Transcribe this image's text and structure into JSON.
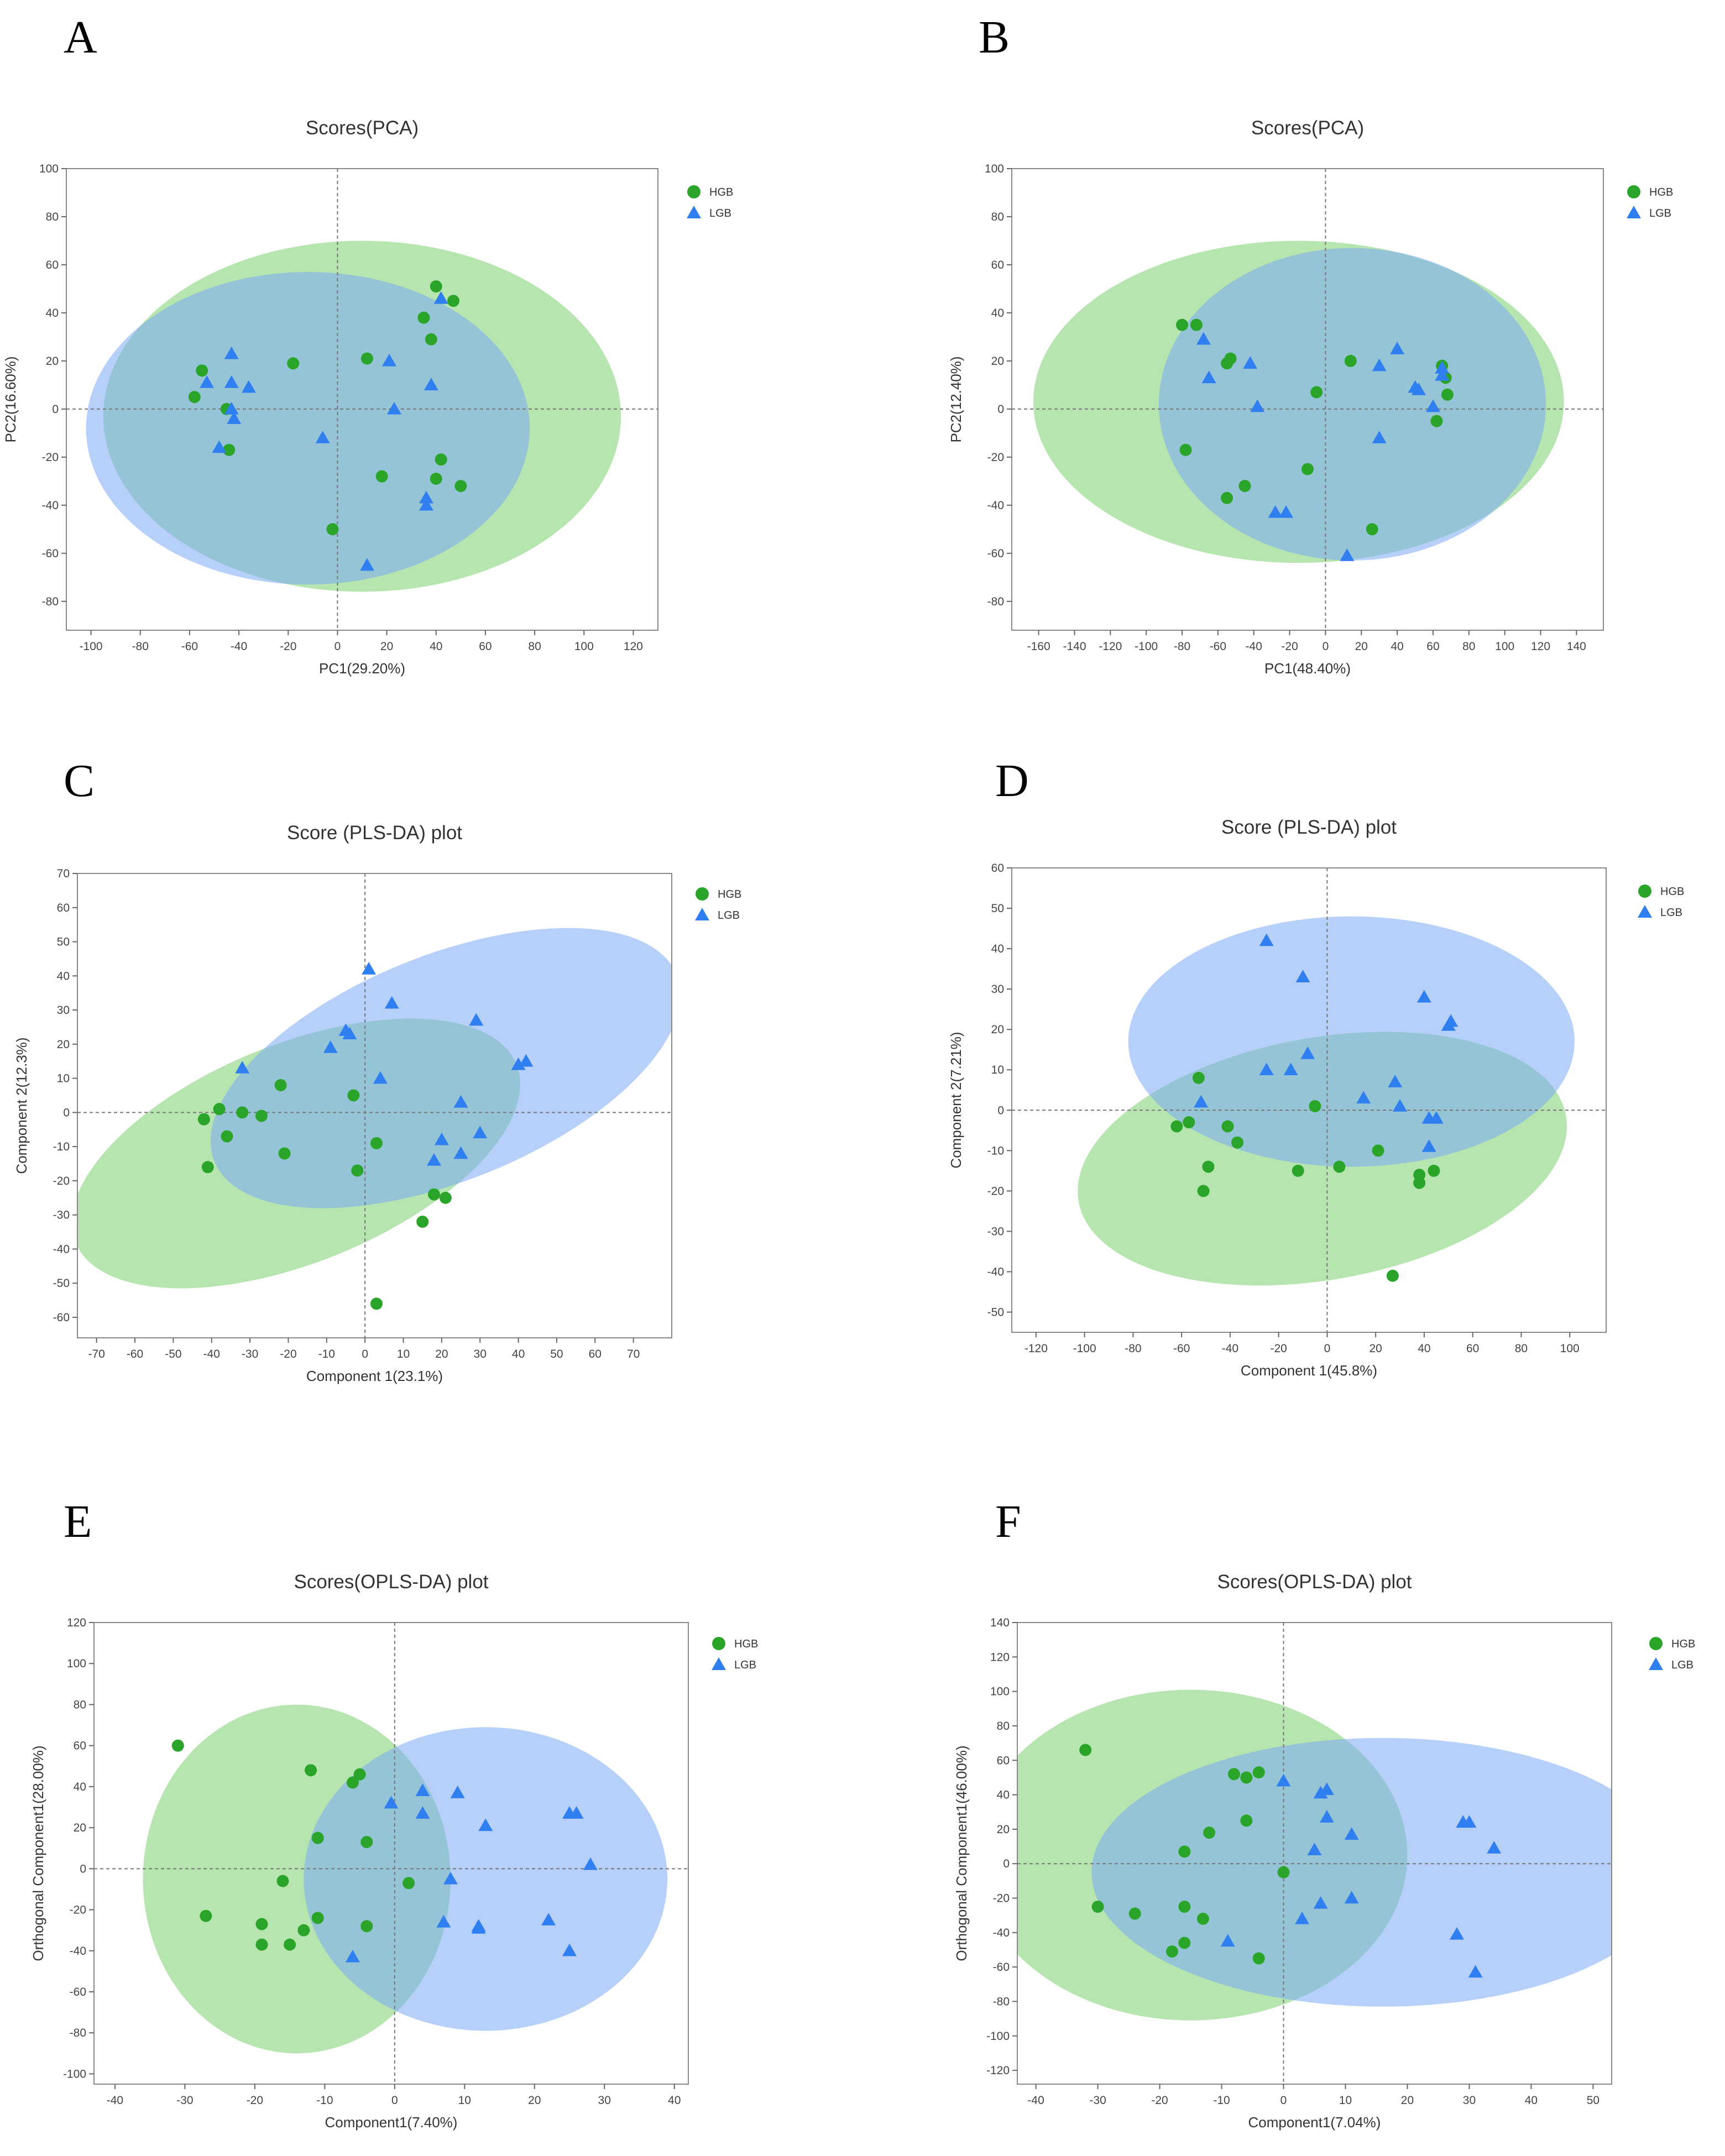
{
  "colors": {
    "hgb": "#2aa52a",
    "lgb": "#2f7ff0",
    "hgb_fill": "#7ccf6e",
    "lgb_fill": "#7aa9f5"
  },
  "chart_data": [
    {
      "panel": "A",
      "type": "scatter",
      "title": "Scores(PCA)",
      "xlabel": "PC1(29.20%)",
      "ylabel": "PC2(16.60%)",
      "xlim": [
        -110,
        130
      ],
      "ylim": [
        -92,
        100
      ],
      "xticks": [
        -100,
        -80,
        -60,
        -40,
        -20,
        0,
        20,
        40,
        60,
        80,
        100,
        120
      ],
      "yticks": [
        100,
        80,
        60,
        40,
        20,
        0,
        -20,
        -40,
        -60,
        -80
      ],
      "legend": [
        "HGB",
        "LGB"
      ],
      "ellipses": [
        {
          "group": "HGB",
          "cx": 10,
          "cy": -3,
          "rx": 105,
          "ry": 73,
          "angle": 0
        },
        {
          "group": "LGB",
          "cx": -12,
          "cy": -8,
          "rx": 90,
          "ry": 65,
          "angle": 0
        }
      ],
      "series": [
        {
          "name": "HGB",
          "marker": "circle",
          "points": [
            [
              -58,
              5
            ],
            [
              -55,
              16
            ],
            [
              -45,
              0
            ],
            [
              -44,
              -17
            ],
            [
              -18,
              19
            ],
            [
              12,
              21
            ],
            [
              18,
              -28
            ],
            [
              35,
              38
            ],
            [
              38,
              29
            ],
            [
              40,
              51
            ],
            [
              47,
              45
            ],
            [
              42,
              -21
            ],
            [
              40,
              -29
            ],
            [
              50,
              -32
            ],
            [
              -2,
              -50
            ]
          ]
        },
        {
          "name": "LGB",
          "marker": "triangle",
          "points": [
            [
              -53,
              11
            ],
            [
              -43,
              23
            ],
            [
              -43,
              11
            ],
            [
              -43,
              0
            ],
            [
              -42,
              -4
            ],
            [
              -36,
              9
            ],
            [
              -48,
              -16
            ],
            [
              -6,
              -12
            ],
            [
              21,
              20
            ],
            [
              23,
              0
            ],
            [
              38,
              10
            ],
            [
              42,
              46
            ],
            [
              36,
              -37
            ],
            [
              36,
              -40
            ],
            [
              12,
              -65
            ]
          ]
        }
      ]
    },
    {
      "panel": "B",
      "type": "scatter",
      "title": "Scores(PCA)",
      "xlabel": "PC1(48.40%)",
      "ylabel": "PC2(12.40%)",
      "xlim": [
        -175,
        155
      ],
      "ylim": [
        -92,
        100
      ],
      "xticks": [
        -160,
        -140,
        -120,
        -100,
        -80,
        -60,
        -40,
        -20,
        0,
        20,
        40,
        60,
        80,
        100,
        120,
        140
      ],
      "yticks": [
        100,
        80,
        60,
        40,
        20,
        0,
        -20,
        -40,
        -60,
        -80
      ],
      "legend": [
        "HGB",
        "LGB"
      ],
      "ellipses": [
        {
          "group": "HGB",
          "cx": -15,
          "cy": 3,
          "rx": 148,
          "ry": 67,
          "angle": 0
        },
        {
          "group": "LGB",
          "cx": 15,
          "cy": 2,
          "rx": 108,
          "ry": 65,
          "angle": 0
        }
      ],
      "series": [
        {
          "name": "HGB",
          "marker": "circle",
          "points": [
            [
              -80,
              35
            ],
            [
              -72,
              35
            ],
            [
              -55,
              19
            ],
            [
              -53,
              21
            ],
            [
              -5,
              7
            ],
            [
              14,
              20
            ],
            [
              -78,
              -17
            ],
            [
              -45,
              -32
            ],
            [
              -55,
              -37
            ],
            [
              -10,
              -25
            ],
            [
              26,
              -50
            ],
            [
              65,
              18
            ],
            [
              67,
              13
            ],
            [
              68,
              6
            ],
            [
              62,
              -5
            ]
          ]
        },
        {
          "name": "LGB",
          "marker": "triangle",
          "points": [
            [
              -68,
              29
            ],
            [
              -65,
              13
            ],
            [
              -42,
              19
            ],
            [
              -38,
              1
            ],
            [
              -28,
              -43
            ],
            [
              -22,
              -43
            ],
            [
              12,
              -61
            ],
            [
              30,
              18
            ],
            [
              40,
              25
            ],
            [
              50,
              9
            ],
            [
              30,
              -12
            ],
            [
              60,
              1
            ],
            [
              65,
              14
            ],
            [
              65,
              17
            ],
            [
              52,
              8
            ]
          ]
        }
      ]
    },
    {
      "panel": "C",
      "type": "scatter",
      "title": "Score (PLS-DA) plot",
      "xlabel": "Component 1(23.1%)",
      "ylabel": "Component 2(12.3%)",
      "xlim": [
        -75,
        80
      ],
      "ylim": [
        -66,
        70
      ],
      "xticks": [
        -70,
        -60,
        -50,
        -40,
        -30,
        -20,
        -10,
        0,
        10,
        20,
        30,
        40,
        50,
        60,
        70
      ],
      "yticks": [
        70,
        60,
        50,
        40,
        30,
        20,
        10,
        0,
        -10,
        -20,
        -30,
        -40,
        -50,
        -60
      ],
      "legend": [
        "HGB",
        "LGB"
      ],
      "ellipses": [
        {
          "group": "HGB",
          "cx": -18,
          "cy": -12,
          "rx": 62,
          "ry": 32,
          "angle": -22
        },
        {
          "group": "LGB",
          "cx": 21,
          "cy": 13,
          "rx": 65,
          "ry": 33,
          "angle": -22
        }
      ],
      "series": [
        {
          "name": "HGB",
          "marker": "circle",
          "points": [
            [
              -42,
              -2
            ],
            [
              -38,
              1
            ],
            [
              -36,
              -7
            ],
            [
              -32,
              0
            ],
            [
              -27,
              -1
            ],
            [
              -22,
              8
            ],
            [
              -21,
              -12
            ],
            [
              -41,
              -16
            ],
            [
              -3,
              5
            ],
            [
              3,
              -9
            ],
            [
              -2,
              -17
            ],
            [
              18,
              -24
            ],
            [
              21,
              -25
            ],
            [
              15,
              -32
            ],
            [
              3,
              -56
            ]
          ]
        },
        {
          "name": "LGB",
          "marker": "triangle",
          "points": [
            [
              -32,
              13
            ],
            [
              -9,
              19
            ],
            [
              -5,
              24
            ],
            [
              -4,
              23
            ],
            [
              1,
              42
            ],
            [
              4,
              10
            ],
            [
              7,
              32
            ],
            [
              18,
              -14
            ],
            [
              20,
              -8
            ],
            [
              25,
              3
            ],
            [
              25,
              -12
            ],
            [
              29,
              27
            ],
            [
              30,
              -6
            ],
            [
              40,
              14
            ],
            [
              42,
              15
            ]
          ]
        }
      ]
    },
    {
      "panel": "D",
      "type": "scatter",
      "title": "Score (PLS-DA) plot",
      "xlabel": "Component 1(45.8%)",
      "ylabel": "Component 2(7.21%)",
      "xlim": [
        -130,
        115
      ],
      "ylim": [
        -55,
        60
      ],
      "xticks": [
        -120,
        -100,
        -80,
        -60,
        -40,
        -20,
        0,
        20,
        40,
        60,
        80,
        100
      ],
      "yticks": [
        60,
        50,
        40,
        30,
        20,
        10,
        0,
        -10,
        -20,
        -30,
        -40,
        -50
      ],
      "legend": [
        "HGB",
        "LGB"
      ],
      "ellipses": [
        {
          "group": "HGB",
          "cx": -2,
          "cy": -12,
          "rx": 102,
          "ry": 30,
          "angle": -10
        },
        {
          "group": "LGB",
          "cx": 10,
          "cy": 17,
          "rx": 92,
          "ry": 31,
          "angle": 0
        }
      ],
      "series": [
        {
          "name": "HGB",
          "marker": "circle",
          "points": [
            [
              -62,
              -4
            ],
            [
              -57,
              -3
            ],
            [
              -53,
              8
            ],
            [
              -49,
              -14
            ],
            [
              -51,
              -20
            ],
            [
              -41,
              -4
            ],
            [
              -37,
              -8
            ],
            [
              -5,
              1
            ],
            [
              -12,
              -15
            ],
            [
              5,
              -14
            ],
            [
              21,
              -10
            ],
            [
              38,
              -16
            ],
            [
              38,
              -18
            ],
            [
              44,
              -15
            ],
            [
              27,
              -41
            ]
          ]
        },
        {
          "name": "LGB",
          "marker": "triangle",
          "points": [
            [
              -52,
              2
            ],
            [
              -25,
              42
            ],
            [
              -10,
              33
            ],
            [
              -8,
              14
            ],
            [
              -25,
              10
            ],
            [
              -15,
              10
            ],
            [
              15,
              3
            ],
            [
              28,
              7
            ],
            [
              30,
              1
            ],
            [
              40,
              28
            ],
            [
              42,
              -2
            ],
            [
              42,
              -9
            ],
            [
              45,
              -2
            ],
            [
              50,
              21
            ],
            [
              51,
              22
            ]
          ]
        }
      ]
    },
    {
      "panel": "E",
      "type": "scatter",
      "title": "Scores(OPLS-DA) plot",
      "xlabel": "Component1(7.40%)",
      "ylabel": "Orthogonal Component1(28.00%)",
      "xlim": [
        -43,
        42
      ],
      "ylim": [
        -105,
        120
      ],
      "xticks": [
        -40,
        -30,
        -20,
        -10,
        0,
        10,
        20,
        30,
        40
      ],
      "yticks": [
        120,
        100,
        80,
        60,
        40,
        20,
        0,
        -20,
        -40,
        -60,
        -80,
        -100
      ],
      "legend": [
        "HGB",
        "LGB"
      ],
      "ellipses": [
        {
          "group": "HGB",
          "cx": -14,
          "cy": -5,
          "rx": 22,
          "ry": 85,
          "angle": 0
        },
        {
          "group": "LGB",
          "cx": 13,
          "cy": -5,
          "rx": 26,
          "ry": 74,
          "angle": 0
        }
      ],
      "series": [
        {
          "name": "HGB",
          "marker": "circle",
          "points": [
            [
              -31,
              60
            ],
            [
              -12,
              48
            ],
            [
              -6,
              42
            ],
            [
              -5,
              46
            ],
            [
              -11,
              15
            ],
            [
              -4,
              13
            ],
            [
              -16,
              -6
            ],
            [
              -19,
              -27
            ],
            [
              -27,
              -23
            ],
            [
              -19,
              -37
            ],
            [
              -15,
              -37
            ],
            [
              -13,
              -30
            ],
            [
              -11,
              -24
            ],
            [
              -4,
              -28
            ],
            [
              2,
              -7
            ]
          ]
        },
        {
          "name": "LGB",
          "marker": "triangle",
          "points": [
            [
              -6,
              -43
            ],
            [
              -0.5,
              32
            ],
            [
              4,
              27
            ],
            [
              4,
              38
            ],
            [
              9,
              37
            ],
            [
              13,
              21
            ],
            [
              8,
              -5
            ],
            [
              7,
              -26
            ],
            [
              12,
              -28
            ],
            [
              12,
              -29
            ],
            [
              22,
              -25
            ],
            [
              25,
              27
            ],
            [
              26,
              27
            ],
            [
              28,
              2
            ],
            [
              25,
              -40
            ]
          ]
        }
      ]
    },
    {
      "panel": "F",
      "type": "scatter",
      "title": "Scores(OPLS-DA) plot",
      "xlabel": "Component1(7.04%)",
      "ylabel": "Orthogonal Component1(46.00%)",
      "xlim": [
        -43,
        53
      ],
      "ylim": [
        -128,
        140
      ],
      "xticks": [
        -40,
        -30,
        -20,
        -10,
        0,
        10,
        20,
        30,
        40,
        50
      ],
      "yticks": [
        140,
        120,
        100,
        80,
        60,
        40,
        20,
        0,
        -20,
        -40,
        -60,
        -80,
        -100,
        -120
      ],
      "legend": [
        "HGB",
        "LGB"
      ],
      "ellipses": [
        {
          "group": "HGB",
          "cx": -15,
          "cy": 5,
          "rx": 35,
          "ry": 96,
          "angle": 0
        },
        {
          "group": "LGB",
          "cx": 16,
          "cy": -5,
          "rx": 47,
          "ry": 78,
          "angle": 0
        }
      ],
      "series": [
        {
          "name": "HGB",
          "marker": "circle",
          "points": [
            [
              -32,
              66
            ],
            [
              -30,
              -25
            ],
            [
              -24,
              -29
            ],
            [
              -18,
              -51
            ],
            [
              -16,
              -46
            ],
            [
              -16,
              -25
            ],
            [
              -16,
              7
            ],
            [
              -13,
              -32
            ],
            [
              -12,
              18
            ],
            [
              -8,
              52
            ],
            [
              -6,
              50
            ],
            [
              -4,
              53
            ],
            [
              -6,
              25
            ],
            [
              0,
              -5
            ],
            [
              -4,
              -55
            ]
          ]
        },
        {
          "name": "LGB",
          "marker": "triangle",
          "points": [
            [
              0,
              48
            ],
            [
              6,
              41
            ],
            [
              7,
              43
            ],
            [
              7,
              27
            ],
            [
              5,
              8
            ],
            [
              3,
              -32
            ],
            [
              6,
              -23
            ],
            [
              11,
              17
            ],
            [
              11,
              -20
            ],
            [
              -9,
              -45
            ],
            [
              29,
              24
            ],
            [
              30,
              24
            ],
            [
              34,
              9
            ],
            [
              28,
              -41
            ],
            [
              31,
              -63
            ]
          ]
        }
      ]
    }
  ]
}
